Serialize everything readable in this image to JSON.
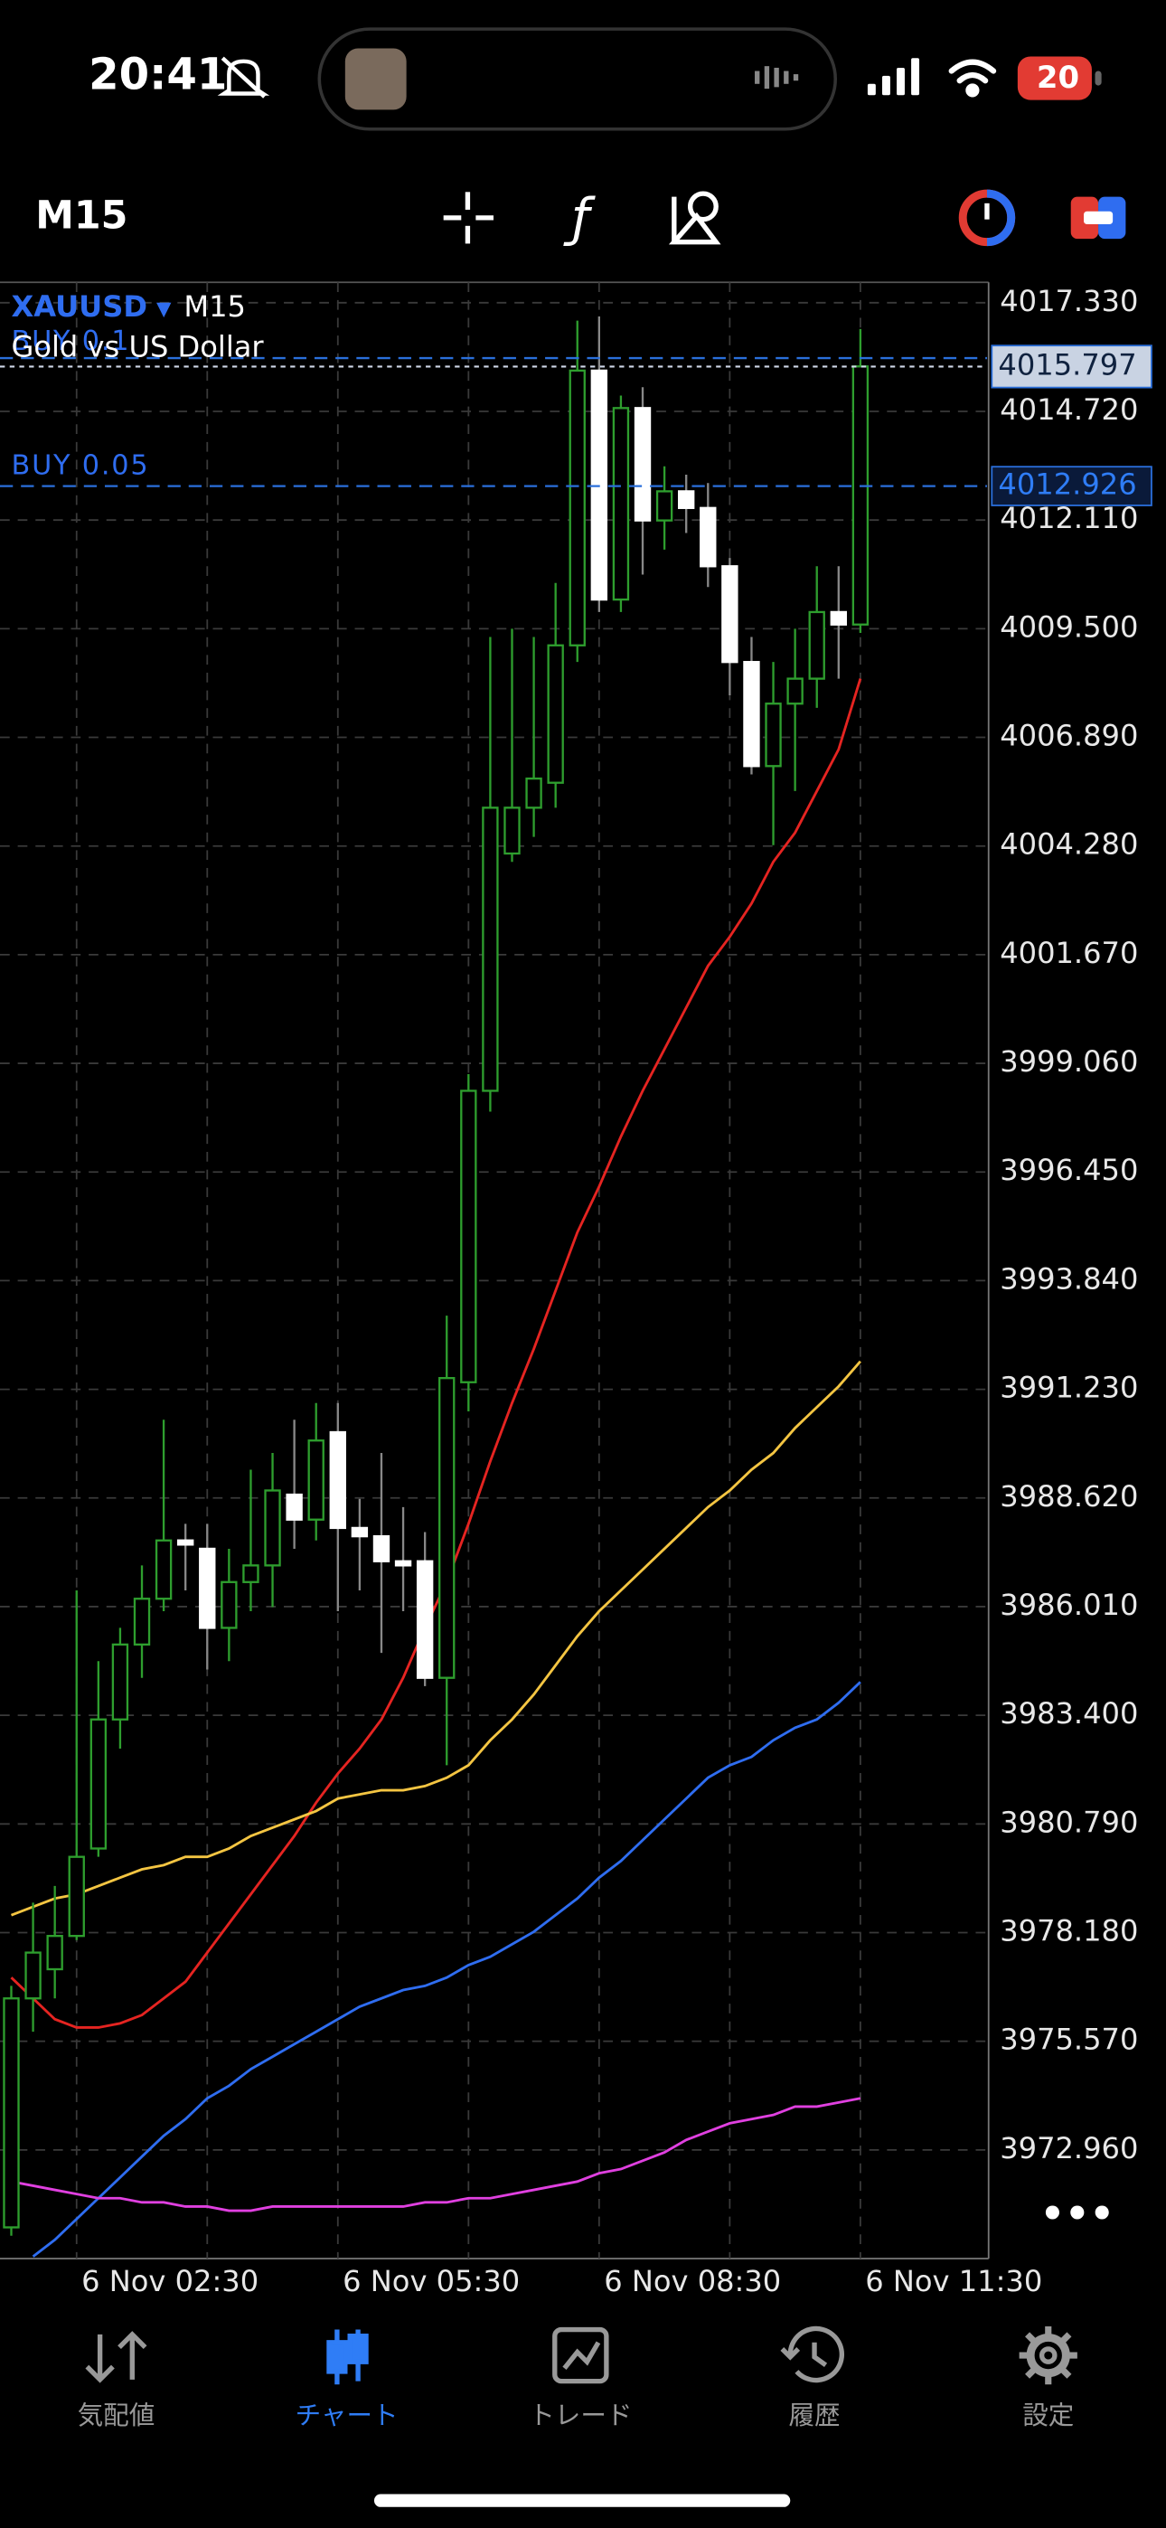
{
  "status_bar": {
    "time": "20:41",
    "battery": "20"
  },
  "toolbar": {
    "timeframe": "M15"
  },
  "chart_data": {
    "type": "candlestick",
    "symbol": "XAUUSD",
    "timeframe": "M15",
    "description": "Gold vs US Dollar",
    "categories": [
      null,
      null,
      null,
      "6 Nov 02:30",
      null,
      null,
      null,
      null,
      null,
      null,
      null,
      null,
      null,
      null,
      null,
      "6 Nov 05:30",
      null,
      null,
      null,
      null,
      null,
      null,
      null,
      null,
      null,
      null,
      null,
      "6 Nov 08:30",
      null,
      null,
      null,
      null,
      null,
      null,
      null,
      null,
      null,
      null,
      null,
      "6 Nov 11:30"
    ],
    "open": [
      3971.1,
      3976.6,
      3977.3,
      3978.1,
      3980.2,
      3983.3,
      3985.1,
      3986.2,
      3987.6,
      3987.4,
      3985.5,
      3986.6,
      3987.0,
      3988.7,
      3988.1,
      3990.2,
      3987.9,
      3987.7,
      3987.1,
      3987.1,
      3984.3,
      3991.4,
      3998.4,
      4004.1,
      4005.2,
      4005.8,
      4009.1,
      4015.7,
      4010.2,
      4014.8,
      4012.1,
      4012.8,
      4012.4,
      4011.0,
      4008.7,
      4006.2,
      4007.7,
      4008.3,
      4009.9,
      4009.6
    ],
    "high": [
      3976.9,
      3978.9,
      3979.3,
      3986.4,
      3984.7,
      3985.5,
      3987.0,
      3990.5,
      3988.0,
      3988.0,
      3987.4,
      3989.3,
      3989.7,
      3990.5,
      3990.9,
      3990.9,
      3988.6,
      3989.7,
      3988.4,
      3987.8,
      3993.0,
      3998.8,
      4009.3,
      4009.5,
      4009.3,
      4010.6,
      4016.9,
      4017.0,
      4015.1,
      4015.3,
      4013.4,
      4013.2,
      4013.0,
      4011.2,
      4009.3,
      4008.7,
      4009.5,
      4011.0,
      4011.0,
      4016.7
    ],
    "low": [
      3970.9,
      3975.8,
      3976.6,
      3978.0,
      3980.0,
      3982.6,
      3984.3,
      3985.9,
      3986.4,
      3984.5,
      3984.7,
      3985.9,
      3986.0,
      3987.4,
      3987.6,
      3985.9,
      3986.4,
      3984.9,
      3985.9,
      3984.1,
      3982.2,
      3990.7,
      3997.9,
      4003.9,
      4004.5,
      4005.2,
      4008.7,
      4009.9,
      4009.9,
      4010.8,
      4011.4,
      4011.8,
      4010.5,
      4007.9,
      4006.0,
      4004.3,
      4005.6,
      4007.6,
      4008.3,
      4009.4
    ],
    "close": [
      3976.6,
      3977.7,
      3978.1,
      3980.0,
      3983.3,
      3985.1,
      3986.2,
      3987.6,
      3987.5,
      3985.5,
      3986.6,
      3987.0,
      3988.8,
      3988.1,
      3990.0,
      3987.9,
      3987.7,
      3987.1,
      3987.0,
      3984.3,
      3991.5,
      3998.4,
      4005.2,
      4005.2,
      4005.9,
      4009.1,
      4015.7,
      4010.2,
      4014.8,
      4012.1,
      4012.8,
      4012.4,
      4011.0,
      4008.7,
      4006.2,
      4007.7,
      4008.3,
      4009.9,
      4009.6,
      4015.8
    ],
    "bull_color": "#2e9e2e",
    "bear_color": "#ffffff",
    "lines": [
      {
        "color": "#e52421",
        "values": [
          3977.1,
          3976.6,
          3976.1,
          3975.9,
          3975.9,
          3976.0,
          3976.2,
          3976.6,
          3977.0,
          3977.7,
          3978.4,
          3979.1,
          3979.8,
          3980.5,
          3981.3,
          3982.0,
          3982.6,
          3983.3,
          3984.3,
          3985.5,
          3986.6,
          3988.0,
          3989.5,
          3990.9,
          3992.2,
          3993.6,
          3995.0,
          3996.1,
          3997.3,
          3998.4,
          3999.4,
          4000.4,
          4001.4,
          4002.1,
          4002.9,
          4003.9,
          4004.6,
          4005.6,
          4006.6,
          4008.3
        ]
      },
      {
        "color": "#f4c542",
        "values": [
          3978.6,
          3978.8,
          3979.0,
          3979.1,
          3979.3,
          3979.5,
          3979.7,
          3979.8,
          3980.0,
          3980.0,
          3980.2,
          3980.5,
          3980.7,
          3980.9,
          3981.1,
          3981.4,
          3981.5,
          3981.6,
          3981.6,
          3981.7,
          3981.9,
          3982.2,
          3982.8,
          3983.3,
          3983.9,
          3984.6,
          3985.3,
          3985.9,
          3986.4,
          3986.9,
          3987.4,
          3987.9,
          3988.4,
          3988.8,
          3989.3,
          3989.7,
          3990.3,
          3990.8,
          3991.3,
          3991.9
        ]
      },
      {
        "color": "#2f6df0",
        "values": [
          null,
          3970.4,
          3970.8,
          3971.3,
          3971.8,
          3972.3,
          3972.8,
          3973.3,
          3973.7,
          3974.2,
          3974.5,
          3974.9,
          3975.2,
          3975.5,
          3975.8,
          3976.1,
          3976.4,
          3976.6,
          3976.8,
          3976.9,
          3977.1,
          3977.4,
          3977.6,
          3977.9,
          3978.2,
          3978.6,
          3979.0,
          3979.5,
          3979.9,
          3980.4,
          3980.9,
          3981.4,
          3981.9,
          3982.2,
          3982.4,
          3982.8,
          3983.1,
          3983.3,
          3983.7,
          3984.2
        ]
      },
      {
        "color": "#e040e0",
        "values": [
          3972.2,
          3972.1,
          3972.0,
          3971.9,
          3971.8,
          3971.8,
          3971.7,
          3971.7,
          3971.6,
          3971.6,
          3971.5,
          3971.5,
          3971.6,
          3971.6,
          3971.6,
          3971.6,
          3971.6,
          3971.6,
          3971.6,
          3971.7,
          3971.7,
          3971.8,
          3971.8,
          3971.9,
          3972.0,
          3972.1,
          3972.2,
          3972.4,
          3972.5,
          3972.7,
          3972.9,
          3973.2,
          3973.4,
          3973.6,
          3973.7,
          3973.8,
          3974.0,
          3974.0,
          3974.1,
          3974.2
        ]
      }
    ],
    "ylim": [
      3970.35,
      4017.82
    ],
    "yticks": [
      {
        "value": 4017.33,
        "label": "4017.330"
      },
      {
        "value": 4014.72,
        "label": "4014.720"
      },
      {
        "value": 4012.11,
        "label": "4012.110"
      },
      {
        "value": 4009.5,
        "label": "4009.500"
      },
      {
        "value": 4006.89,
        "label": "4006.890"
      },
      {
        "value": 4004.28,
        "label": "4004.280"
      },
      {
        "value": 4001.67,
        "label": "4001.670"
      },
      {
        "value": 3999.06,
        "label": "3999.060"
      },
      {
        "value": 3996.45,
        "label": "3996.450"
      },
      {
        "value": 3993.84,
        "label": "3993.840"
      },
      {
        "value": 3991.23,
        "label": "3991.230"
      },
      {
        "value": 3988.62,
        "label": "3988.620"
      },
      {
        "value": 3986.01,
        "label": "3986.010"
      },
      {
        "value": 3983.4,
        "label": "3983.400"
      },
      {
        "value": 3980.79,
        "label": "3980.790"
      },
      {
        "value": 3978.18,
        "label": "3978.180"
      },
      {
        "value": 3975.57,
        "label": "3975.570"
      },
      {
        "value": 3972.96,
        "label": "3972.960"
      }
    ],
    "grid": true,
    "bid": 4015.797,
    "orders": [
      {
        "label": "BUY 0.1",
        "price": 4016.0
      },
      {
        "label": "BUY 0.05",
        "price": 4012.926
      }
    ]
  },
  "tab_bar": {
    "tabs": [
      "気配値",
      "チャート",
      "トレード",
      "履歴",
      "設定"
    ],
    "active": 1
  }
}
